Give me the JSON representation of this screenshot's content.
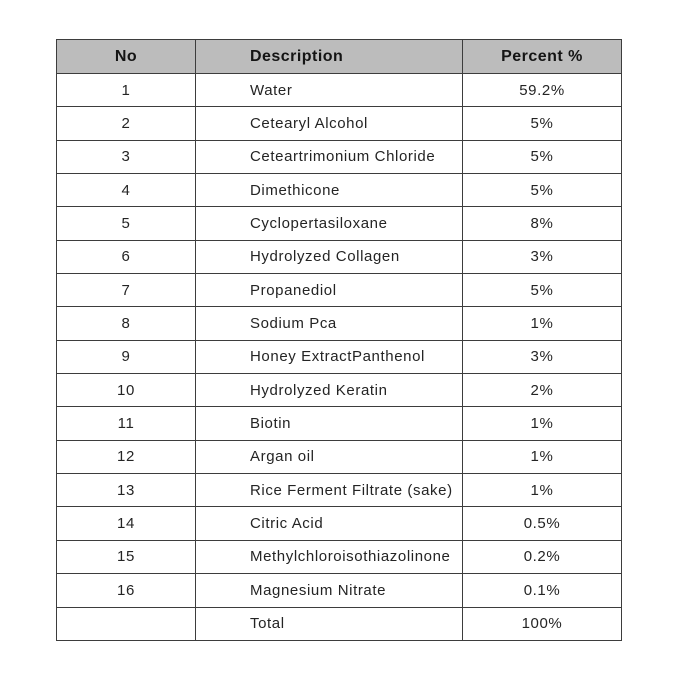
{
  "table": {
    "headers": [
      "No",
      "Description",
      "Percent %"
    ],
    "rows": [
      {
        "no": "1",
        "description": "Water",
        "percent": "59.2%"
      },
      {
        "no": "2",
        "description": "Cetearyl Alcohol",
        "percent": "5%"
      },
      {
        "no": "3",
        "description": "Ceteartrimonium Chloride",
        "percent": "5%"
      },
      {
        "no": "4",
        "description": "Dimethicone",
        "percent": "5%"
      },
      {
        "no": "5",
        "description": "Cyclopertasiloxane",
        "percent": "8%"
      },
      {
        "no": "6",
        "description": "Hydrolyzed Collagen",
        "percent": "3%"
      },
      {
        "no": "7",
        "description": "Propanediol",
        "percent": "5%"
      },
      {
        "no": "8",
        "description": "Sodium Pca",
        "percent": "1%"
      },
      {
        "no": "9",
        "description": "Honey ExtractPanthenol",
        "percent": "3%"
      },
      {
        "no": "10",
        "description": "Hydrolyzed Keratin",
        "percent": "2%"
      },
      {
        "no": "11",
        "description": "Biotin",
        "percent": "1%"
      },
      {
        "no": "12",
        "description": "Argan oil",
        "percent": "1%"
      },
      {
        "no": "13",
        "description": "Rice Ferment Filtrate (sake)",
        "percent": "1%"
      },
      {
        "no": "14",
        "description": "Citric Acid",
        "percent": "0.5%"
      },
      {
        "no": "15",
        "description": "Methylchloroisothiazolinone",
        "percent": "0.2%"
      },
      {
        "no": "16",
        "description": "Magnesium Nitrate",
        "percent": "0.1%"
      },
      {
        "no": "",
        "description": "Total",
        "percent": "100%"
      }
    ],
    "colors": {
      "header_background": "#bcbcbc",
      "border": "#3d3d3d",
      "text": "#242424"
    }
  }
}
